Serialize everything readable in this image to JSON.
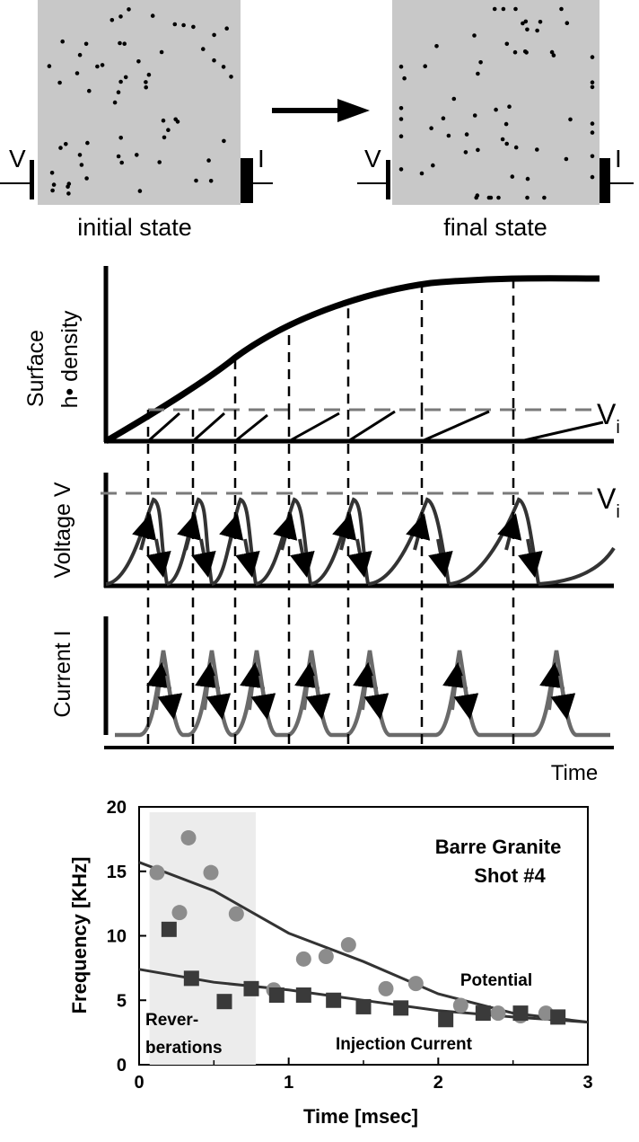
{
  "schematic": {
    "initial_label": "initial state",
    "final_label": "final state",
    "voltage_label": "V",
    "current_label": "I"
  },
  "timing": {
    "surface_label_1": "Surface",
    "surface_label_2": "h• density",
    "voltage_label": "Voltage V",
    "current_label": "Current I",
    "threshold_label": "V",
    "threshold_sub": "i",
    "time_label": "Time"
  },
  "chart_data": {
    "type": "scatter",
    "title": "Barre Granite",
    "subtitle": "Shot #4",
    "xlabel": "Time [msec]",
    "ylabel": "Frequency [KHz]",
    "xlim": [
      0,
      3
    ],
    "ylim": [
      0,
      20
    ],
    "xticks": [
      "0",
      "1",
      "2",
      "3"
    ],
    "yticks": [
      "0",
      "5",
      "10",
      "15",
      "20"
    ],
    "shaded_region_label_1": "Rever-",
    "shaded_region_label_2": "berations",
    "shaded_region": [
      0.07,
      0.78
    ],
    "series": [
      {
        "name": "Potential",
        "marker": "circle",
        "color": "#8c8c8c",
        "x": [
          0.12,
          0.27,
          0.33,
          0.48,
          0.65,
          0.9,
          1.1,
          1.25,
          1.4,
          1.65,
          1.85,
          2.15,
          2.4,
          2.55,
          2.72
        ],
        "y": [
          14.9,
          11.8,
          17.6,
          14.9,
          11.7,
          5.8,
          8.2,
          8.4,
          9.3,
          5.9,
          6.3,
          4.6,
          4.0,
          3.8,
          4.0
        ],
        "fit": [
          [
            0,
            15.7
          ],
          [
            0.5,
            13.5
          ],
          [
            1.0,
            10.2
          ],
          [
            1.5,
            8.0
          ],
          [
            2.0,
            5.5
          ],
          [
            2.5,
            4.0
          ],
          [
            3.0,
            3.3
          ]
        ]
      },
      {
        "name": "Injection Current",
        "marker": "square",
        "color": "#3a3a3a",
        "x": [
          0.2,
          0.35,
          0.57,
          0.75,
          0.92,
          1.1,
          1.3,
          1.5,
          1.75,
          2.05,
          2.3,
          2.55,
          2.8
        ],
        "y": [
          10.5,
          6.7,
          4.9,
          5.9,
          5.4,
          5.4,
          5.0,
          4.5,
          4.4,
          3.5,
          4.0,
          4.0,
          3.7
        ],
        "fit": [
          [
            0,
            7.4
          ],
          [
            0.5,
            6.4
          ],
          [
            1.0,
            5.8
          ],
          [
            1.5,
            5.0
          ],
          [
            2.0,
            4.2
          ],
          [
            2.5,
            3.7
          ],
          [
            3.0,
            3.3
          ]
        ]
      }
    ]
  }
}
